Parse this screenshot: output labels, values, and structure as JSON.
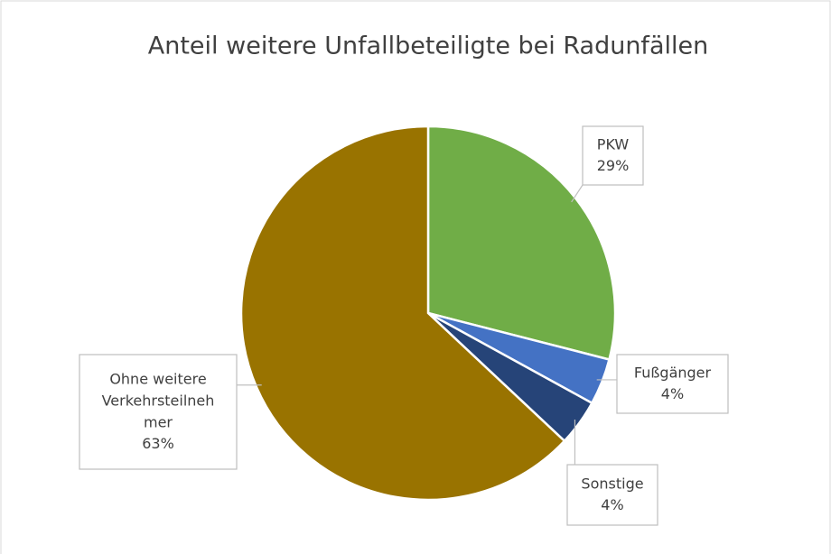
{
  "chart_data": {
    "type": "pie",
    "title": "Anteil weitere Unfallbeteiligte bei Radunfällen",
    "categories": [
      "PKW",
      "Fußgänger",
      "Sonstige",
      "Ohne weitere Verkehrsteilnehmer"
    ],
    "values": [
      29,
      4,
      4,
      63
    ],
    "value_labels": [
      "29%",
      "4%",
      "4%",
      "63%"
    ],
    "colors": [
      "#70ad47",
      "#4472c4",
      "#264478",
      "#997300"
    ]
  }
}
